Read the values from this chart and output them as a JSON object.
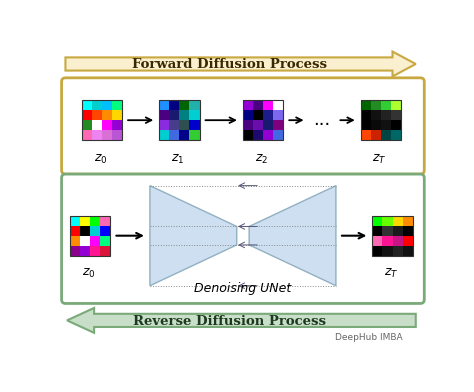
{
  "fig_width": 4.74,
  "fig_height": 3.92,
  "dpi": 100,
  "bg_color": "#ffffff",
  "forward_arrow_fill": "#FAF0D0",
  "forward_arrow_edge": "#C8A840",
  "reverse_arrow_fill": "#C8DEC8",
  "reverse_arrow_edge": "#7AAA7A",
  "forward_box_edge": "#C8A840",
  "reverse_box_edge": "#7AAA7A",
  "forward_text": "Forward Diffusion Process",
  "reverse_text": "Reverse Diffusion Process",
  "denoising_text": "Denoising UNet",
  "deephub_text": "DeepHub IMBA",
  "unet_fill": "#C8DCF0",
  "unet_edge": "#88AABB",
  "text_forward_color": "#3A2800",
  "text_reverse_color": "#1E3A1E"
}
